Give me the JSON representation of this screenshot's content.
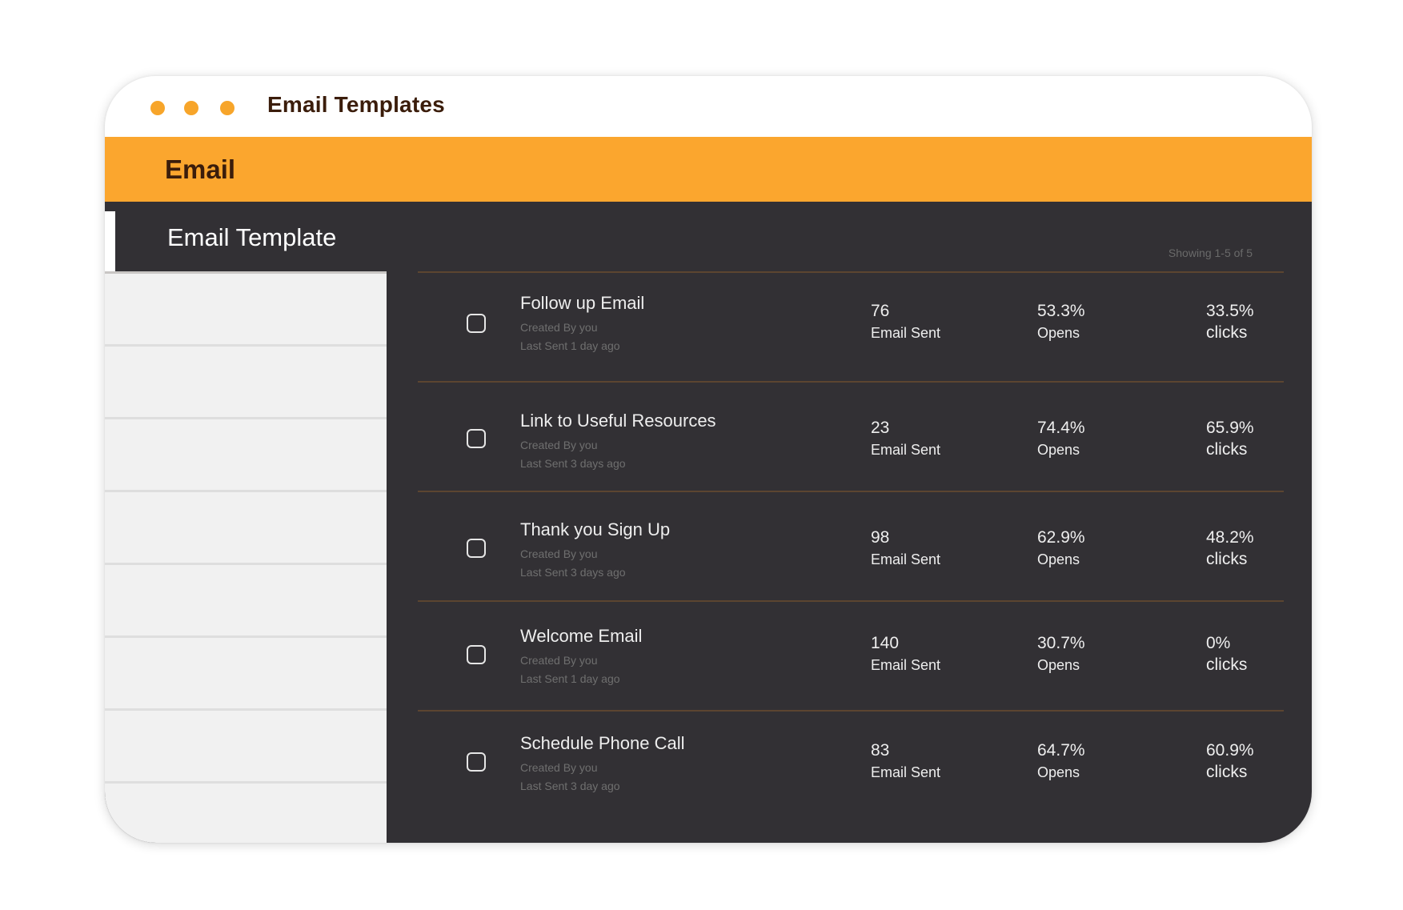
{
  "window": {
    "title": "Email Templates"
  },
  "section": {
    "title": "Email"
  },
  "subheader": {
    "title": "Email Template",
    "showing": "Showing 1-5 of 5"
  },
  "colors": {
    "accent": "#fba62e",
    "dot": "#f7a52a",
    "dark_panel": "#323034",
    "title_text": "#3b1d0b"
  },
  "templates": [
    {
      "name": "Follow up Email",
      "created_by": "Created By you",
      "last_sent": "Last Sent 1 day ago",
      "sent_value": "76",
      "sent_label": "Email Sent",
      "opens_value": "53.3%",
      "opens_label": "Opens",
      "clicks_value": "33.5%",
      "clicks_label": "clicks"
    },
    {
      "name": "Link to Useful Resources",
      "created_by": "Created By you",
      "last_sent": "Last Sent 3 days ago",
      "sent_value": "23",
      "sent_label": "Email Sent",
      "opens_value": "74.4%",
      "opens_label": "Opens",
      "clicks_value": "65.9%",
      "clicks_label": "clicks"
    },
    {
      "name": "Thank you Sign Up",
      "created_by": "Created By you",
      "last_sent": "Last Sent 3 days ago",
      "sent_value": "98",
      "sent_label": "Email Sent",
      "opens_value": "62.9%",
      "opens_label": "Opens",
      "clicks_value": "48.2%",
      "clicks_label": "clicks"
    },
    {
      "name": "Welcome Email",
      "created_by": "Created By you",
      "last_sent": "Last Sent 1 day ago",
      "sent_value": "140",
      "sent_label": "Email Sent",
      "opens_value": "30.7%",
      "opens_label": "Opens",
      "clicks_value": "0%",
      "clicks_label": "clicks"
    },
    {
      "name": "Schedule Phone Call",
      "created_by": "Created By you",
      "last_sent": "Last Sent 3 day ago",
      "sent_value": "83",
      "sent_label": "Email Sent",
      "opens_value": "64.7%",
      "opens_label": "Opens",
      "clicks_value": "60.9%",
      "clicks_label": "clicks"
    }
  ]
}
